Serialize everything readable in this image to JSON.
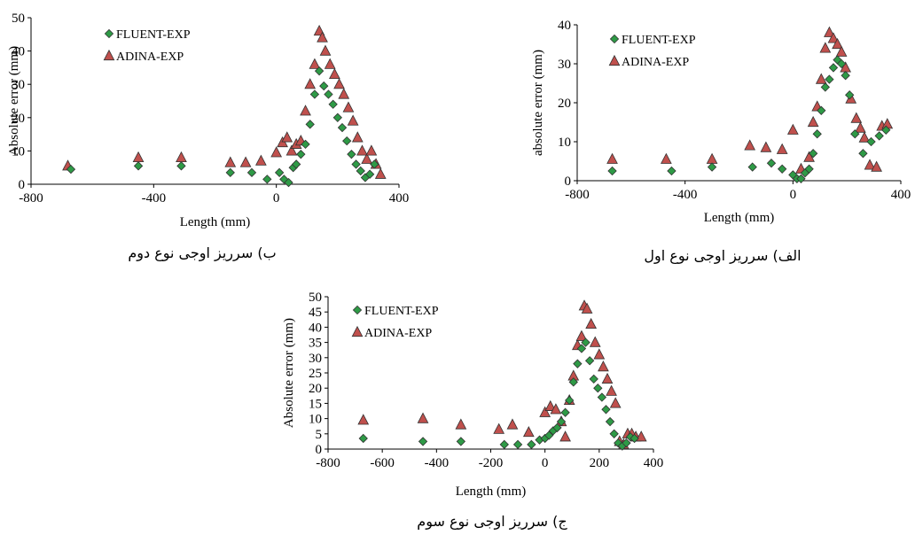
{
  "colors": {
    "fluent": "#2e9a46",
    "adina": "#c0504d"
  },
  "chart_data": [
    {
      "id": "b",
      "type": "scatter",
      "caption": "ب) سرریز اوجی نوع دوم",
      "xlabel": "Length (mm)",
      "ylabel": "Absolute error (mm)",
      "xlim": [
        -800,
        400
      ],
      "ylim": [
        0,
        50
      ],
      "xticks": [
        "-800",
        "-400",
        "0",
        "400"
      ],
      "xtick_values": [
        -800,
        -400,
        0,
        400
      ],
      "yticks": [
        "0",
        "10",
        "20",
        "30",
        "40",
        "50"
      ],
      "ytick_values": [
        0,
        10,
        20,
        30,
        40,
        50
      ],
      "legend": "top-left",
      "series": [
        {
          "name": "FLUENT-EXP",
          "marker": "diamond",
          "x": [
            -670,
            -450,
            -310,
            -150,
            -80,
            -30,
            10,
            25,
            40,
            55,
            65,
            80,
            95,
            110,
            125,
            140,
            155,
            170,
            185,
            200,
            215,
            230,
            245,
            260,
            275,
            290,
            305,
            320
          ],
          "y": [
            4.5,
            5.5,
            5.5,
            3.5,
            3.5,
            1.5,
            3.5,
            1.5,
            0.5,
            5,
            6,
            9,
            12,
            18,
            27,
            34,
            29.5,
            27,
            24,
            20,
            17,
            13,
            9,
            6,
            4,
            2,
            3,
            6
          ]
        },
        {
          "name": "ADINA-EXP",
          "marker": "triangle",
          "x": [
            -680,
            -450,
            -310,
            -150,
            -100,
            -50,
            0,
            20,
            35,
            50,
            65,
            80,
            95,
            110,
            125,
            140,
            150,
            160,
            175,
            190,
            205,
            220,
            235,
            250,
            265,
            280,
            295,
            310,
            325,
            340
          ],
          "y": [
            5.5,
            8,
            8,
            6.5,
            6.5,
            7,
            9.5,
            12.5,
            14,
            10,
            12,
            13,
            22,
            30,
            36,
            46,
            44,
            40,
            36,
            33,
            30,
            27,
            23,
            19,
            14,
            10,
            7.5,
            10,
            6,
            3
          ]
        }
      ]
    },
    {
      "id": "alef",
      "type": "scatter",
      "caption": "الف) سرریز اوجی نوع اول",
      "xlabel": "Length (mm)",
      "ylabel": "absolute error (mm)",
      "xlim": [
        -800,
        400
      ],
      "ylim": [
        0,
        40
      ],
      "xticks": [
        "-800",
        "-400",
        "0",
        "400"
      ],
      "xtick_values": [
        -800,
        -400,
        0,
        400
      ],
      "yticks": [
        "0",
        "10",
        "20",
        "30",
        "40"
      ],
      "ytick_values": [
        0,
        10,
        20,
        30,
        40
      ],
      "legend": "top-left",
      "series": [
        {
          "name": "FLUENT-EXP",
          "marker": "diamond",
          "x": [
            -670,
            -450,
            -300,
            -150,
            -80,
            -40,
            0,
            15,
            30,
            45,
            60,
            75,
            90,
            105,
            120,
            135,
            150,
            165,
            180,
            195,
            210,
            230,
            260,
            290,
            320,
            345
          ],
          "y": [
            2.5,
            2.5,
            3.5,
            3.5,
            4.5,
            3,
            1.5,
            0.5,
            0.5,
            2,
            3,
            7,
            12,
            18,
            24,
            26,
            29,
            31,
            30,
            27,
            22,
            12,
            7,
            10,
            11.5,
            13
          ]
        },
        {
          "name": "ADINA-EXP",
          "marker": "triangle",
          "x": [
            -670,
            -470,
            -300,
            -160,
            -100,
            -40,
            0,
            30,
            60,
            75,
            90,
            105,
            120,
            135,
            150,
            165,
            180,
            195,
            215,
            235,
            250,
            265,
            285,
            310,
            330,
            350
          ],
          "y": [
            5.5,
            5.5,
            5.5,
            9,
            8.5,
            8,
            13,
            3,
            6,
            15,
            19,
            26,
            34,
            38,
            36.5,
            35,
            33,
            29,
            21,
            16,
            13.5,
            11,
            4,
            3.5,
            14,
            14.5
          ]
        }
      ]
    },
    {
      "id": "jim",
      "type": "scatter",
      "caption": "ج) سرریز اوجی نوع سوم",
      "xlabel": "Length (mm)",
      "ylabel": "Absolute error (mm)",
      "xlim": [
        -800,
        400
      ],
      "ylim": [
        0,
        50
      ],
      "xticks": [
        "-800",
        "-600",
        "-400",
        "-200",
        "0",
        "200",
        "400"
      ],
      "xtick_values": [
        -800,
        -600,
        -400,
        -200,
        0,
        200,
        400
      ],
      "yticks": [
        "0",
        "5",
        "10",
        "15",
        "20",
        "25",
        "30",
        "35",
        "40",
        "45",
        "50"
      ],
      "ytick_values": [
        0,
        5,
        10,
        15,
        20,
        25,
        30,
        35,
        40,
        45,
        50
      ],
      "legend": "top-left",
      "series": [
        {
          "name": "FLUENT-EXP",
          "marker": "diamond",
          "x": [
            -670,
            -450,
            -310,
            -150,
            -100,
            -50,
            -20,
            0,
            15,
            30,
            45,
            60,
            75,
            90,
            105,
            120,
            135,
            150,
            165,
            180,
            195,
            210,
            225,
            240,
            255,
            270,
            285,
            300,
            315,
            330
          ],
          "y": [
            3.5,
            2.5,
            2.5,
            1.5,
            1.5,
            1.5,
            3,
            3.5,
            4.5,
            6,
            7,
            9,
            12,
            16,
            22,
            28,
            33,
            35,
            29,
            23,
            20,
            17,
            13,
            9,
            5,
            2,
            1,
            2,
            4,
            3.5
          ]
        },
        {
          "name": "ADINA-EXP",
          "marker": "triangle",
          "x": [
            -670,
            -450,
            -310,
            -170,
            -120,
            -60,
            0,
            20,
            40,
            60,
            75,
            90,
            105,
            120,
            135,
            145,
            155,
            170,
            185,
            200,
            215,
            230,
            245,
            260,
            275,
            290,
            305,
            320,
            335,
            355
          ],
          "y": [
            9.5,
            10,
            8,
            6.5,
            8,
            5.5,
            12,
            14,
            13,
            9,
            4,
            16,
            24,
            34,
            37,
            47,
            46,
            41,
            35,
            31,
            27,
            23,
            19,
            15,
            2.5,
            1.5,
            5,
            5,
            4,
            4
          ]
        }
      ]
    }
  ]
}
